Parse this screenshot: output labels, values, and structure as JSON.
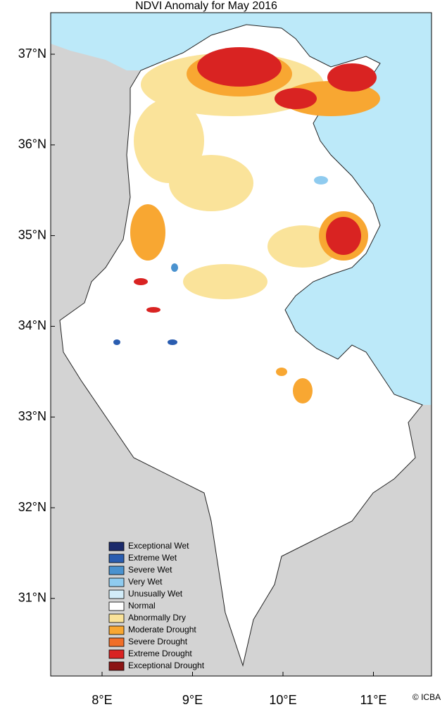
{
  "map": {
    "title": "NDVI Anomaly for May 2016",
    "credit": "© ICBA",
    "lon_ticks": [
      {
        "value": 8,
        "label": "8°E"
      },
      {
        "value": 9,
        "label": "9°E"
      },
      {
        "value": 10,
        "label": "10°E"
      },
      {
        "value": 11,
        "label": "11°E"
      }
    ],
    "lat_ticks": [
      {
        "value": 37,
        "label": "37°N"
      },
      {
        "value": 36,
        "label": "36°N"
      },
      {
        "value": 35,
        "label": "35°N"
      },
      {
        "value": 34,
        "label": "34°N"
      },
      {
        "value": 33,
        "label": "33°N"
      },
      {
        "value": 32,
        "label": "32°N"
      },
      {
        "value": 31,
        "label": "31°N"
      }
    ],
    "legend": [
      {
        "label": "Exceptional Wet",
        "color": "#1b2a6b"
      },
      {
        "label": "Extreme Wet",
        "color": "#2a5db0"
      },
      {
        "label": "Severe Wet",
        "color": "#4a92cf"
      },
      {
        "label": "Very Wet",
        "color": "#8fcbef"
      },
      {
        "label": "Unusually Wet",
        "color": "#d2ecf8"
      },
      {
        "label": "Normal",
        "color": "#ffffff"
      },
      {
        "label": "Abnormally Dry",
        "color": "#fae39a"
      },
      {
        "label": "Moderate Drought",
        "color": "#f8a732"
      },
      {
        "label": "Severe Drought",
        "color": "#f06e28"
      },
      {
        "label": "Extreme Drought",
        "color": "#d92322"
      },
      {
        "label": "Exceptional Drought",
        "color": "#8b1414"
      }
    ]
  }
}
